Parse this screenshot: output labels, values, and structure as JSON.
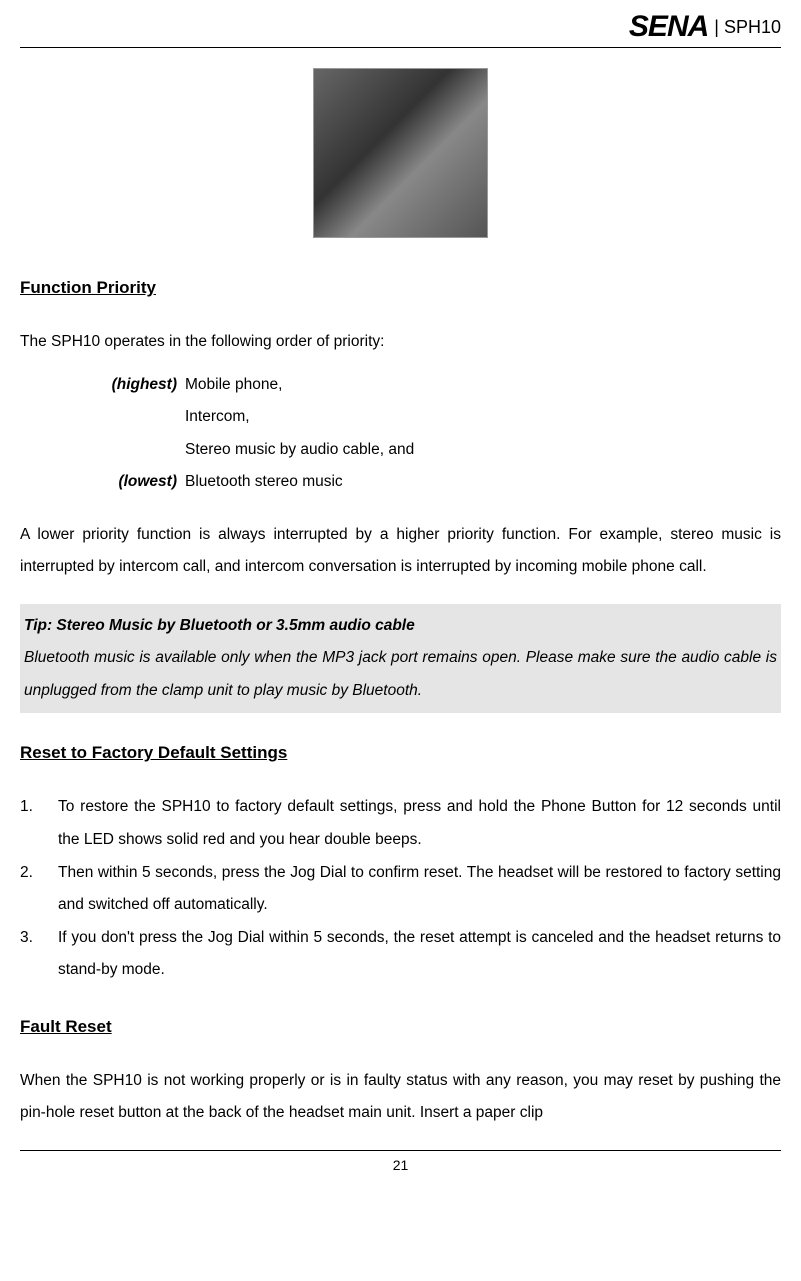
{
  "header": {
    "logo_text": "SENA",
    "product": "| SPH10"
  },
  "figure": {
    "alt": "Headset jog dial figure"
  },
  "section1": {
    "heading": "Function Priority",
    "intro": "The SPH10 operates in the following order of priority:",
    "priority_rows": [
      {
        "label": "(highest)",
        "value": "Mobile phone,"
      },
      {
        "label": "",
        "value": "Intercom,"
      },
      {
        "label": "",
        "value": "Stereo music by audio cable, and"
      },
      {
        "label": "(lowest)",
        "value": "Bluetooth stereo music"
      }
    ],
    "para2": "A lower priority function is always interrupted by a higher priority function. For example, stereo music is interrupted by intercom call, and intercom conversation is interrupted by incoming mobile phone call."
  },
  "tip": {
    "title": "Tip: Stereo Music by Bluetooth or 3.5mm audio cable",
    "body": "Bluetooth music is available only when the MP3 jack port remains open. Please make sure the audio cable is unplugged from the clamp unit to play music by Bluetooth."
  },
  "section2": {
    "heading": "Reset to Factory Default Settings",
    "items": [
      {
        "num": "1.",
        "text": "To restore the SPH10 to factory default settings, press and hold the Phone Button for 12 seconds until the LED shows solid red and you hear double beeps."
      },
      {
        "num": "2.",
        "text": "Then within 5 seconds, press the Jog Dial to confirm reset. The headset will be restored to factory setting and switched off automatically."
      },
      {
        "num": "3.",
        "text": "If you don't press the Jog Dial within 5 seconds, the reset attempt is canceled and the headset returns to stand-by mode."
      }
    ]
  },
  "section3": {
    "heading": "Fault Reset  ",
    "para": "When the SPH10 is not working properly or is in faulty status with any reason, you may reset by pushing the pin-hole reset button at the back of the headset main unit. Insert a paper clip"
  },
  "footer": {
    "page_number": "21"
  }
}
